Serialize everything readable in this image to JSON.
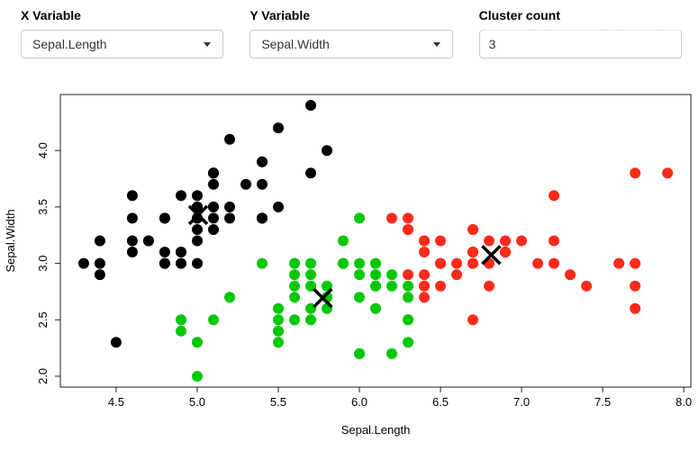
{
  "controls": {
    "x_variable": {
      "label": "X Variable",
      "value": "Sepal.Length"
    },
    "y_variable": {
      "label": "Y Variable",
      "value": "Sepal.Width"
    },
    "cluster_count": {
      "label": "Cluster count",
      "value": "3"
    }
  },
  "chart_data": {
    "type": "scatter",
    "title": "",
    "xlabel": "Sepal.Length",
    "ylabel": "Sepal.Width",
    "xlim": [
      4.156,
      8.044
    ],
    "ylim": [
      1.904,
      4.496
    ],
    "x_tick_labels": [
      "4.5",
      "5.0",
      "5.5",
      "6.0",
      "6.5",
      "7.0",
      "7.5",
      "8.0"
    ],
    "y_tick_labels": [
      "2.0",
      "2.5",
      "3.0",
      "3.5",
      "4.0"
    ],
    "grid": false,
    "legend_position": "none",
    "cluster_colors": {
      "1": "#000000",
      "2": "#00C800",
      "3": "#FF2A1A"
    },
    "points": [
      [
        5.1,
        3.5,
        1
      ],
      [
        4.9,
        3.0,
        1
      ],
      [
        4.7,
        3.2,
        1
      ],
      [
        4.6,
        3.1,
        1
      ],
      [
        5.0,
        3.6,
        1
      ],
      [
        5.4,
        3.9,
        1
      ],
      [
        4.6,
        3.4,
        1
      ],
      [
        5.0,
        3.4,
        1
      ],
      [
        4.4,
        2.9,
        1
      ],
      [
        4.9,
        3.1,
        1
      ],
      [
        5.4,
        3.7,
        1
      ],
      [
        4.8,
        3.4,
        1
      ],
      [
        4.8,
        3.0,
        1
      ],
      [
        4.3,
        3.0,
        1
      ],
      [
        5.8,
        4.0,
        1
      ],
      [
        5.7,
        4.4,
        1
      ],
      [
        5.4,
        3.9,
        1
      ],
      [
        5.1,
        3.5,
        1
      ],
      [
        5.7,
        3.8,
        1
      ],
      [
        5.1,
        3.8,
        1
      ],
      [
        5.4,
        3.4,
        1
      ],
      [
        5.1,
        3.7,
        1
      ],
      [
        4.6,
        3.6,
        1
      ],
      [
        5.1,
        3.3,
        1
      ],
      [
        4.8,
        3.4,
        1
      ],
      [
        5.0,
        3.0,
        1
      ],
      [
        5.0,
        3.4,
        1
      ],
      [
        5.2,
        3.5,
        1
      ],
      [
        5.2,
        3.4,
        1
      ],
      [
        4.7,
        3.2,
        1
      ],
      [
        4.8,
        3.1,
        1
      ],
      [
        5.4,
        3.4,
        1
      ],
      [
        5.2,
        4.1,
        1
      ],
      [
        5.5,
        4.2,
        1
      ],
      [
        4.9,
        3.1,
        1
      ],
      [
        5.0,
        3.2,
        1
      ],
      [
        5.5,
        3.5,
        1
      ],
      [
        4.9,
        3.6,
        1
      ],
      [
        4.4,
        3.0,
        1
      ],
      [
        5.1,
        3.4,
        1
      ],
      [
        5.0,
        3.5,
        1
      ],
      [
        4.5,
        2.3,
        1
      ],
      [
        4.4,
        3.2,
        1
      ],
      [
        5.0,
        3.5,
        1
      ],
      [
        5.1,
        3.8,
        1
      ],
      [
        4.8,
        3.0,
        1
      ],
      [
        5.1,
        3.8,
        1
      ],
      [
        4.6,
        3.2,
        1
      ],
      [
        5.3,
        3.7,
        1
      ],
      [
        5.0,
        3.3,
        1
      ],
      [
        7.0,
        3.2,
        3
      ],
      [
        6.4,
        3.2,
        3
      ],
      [
        6.9,
        3.1,
        3
      ],
      [
        5.5,
        2.3,
        2
      ],
      [
        6.5,
        2.8,
        3
      ],
      [
        5.7,
        2.8,
        2
      ],
      [
        6.3,
        3.3,
        3
      ],
      [
        4.9,
        2.4,
        2
      ],
      [
        6.6,
        2.9,
        3
      ],
      [
        5.2,
        2.7,
        2
      ],
      [
        5.0,
        2.0,
        2
      ],
      [
        5.9,
        3.0,
        2
      ],
      [
        6.0,
        2.2,
        2
      ],
      [
        6.1,
        2.9,
        2
      ],
      [
        5.6,
        2.9,
        2
      ],
      [
        6.7,
        3.1,
        3
      ],
      [
        5.6,
        3.0,
        2
      ],
      [
        5.8,
        2.7,
        2
      ],
      [
        6.2,
        2.2,
        2
      ],
      [
        5.6,
        2.5,
        2
      ],
      [
        5.9,
        3.2,
        2
      ],
      [
        6.1,
        2.8,
        2
      ],
      [
        6.3,
        2.5,
        2
      ],
      [
        6.1,
        2.8,
        2
      ],
      [
        6.4,
        2.9,
        3
      ],
      [
        6.6,
        3.0,
        3
      ],
      [
        6.8,
        2.8,
        3
      ],
      [
        6.7,
        3.0,
        3
      ],
      [
        6.0,
        2.9,
        2
      ],
      [
        5.7,
        2.6,
        2
      ],
      [
        5.5,
        2.4,
        2
      ],
      [
        5.5,
        2.4,
        2
      ],
      [
        5.8,
        2.7,
        2
      ],
      [
        6.0,
        2.7,
        2
      ],
      [
        5.4,
        3.0,
        2
      ],
      [
        6.0,
        3.4,
        2
      ],
      [
        6.7,
        3.1,
        3
      ],
      [
        6.3,
        2.3,
        2
      ],
      [
        5.6,
        3.0,
        2
      ],
      [
        5.5,
        2.5,
        2
      ],
      [
        5.5,
        2.6,
        2
      ],
      [
        6.1,
        3.0,
        2
      ],
      [
        5.8,
        2.6,
        2
      ],
      [
        5.0,
        2.3,
        2
      ],
      [
        5.6,
        2.7,
        2
      ],
      [
        5.7,
        3.0,
        2
      ],
      [
        5.7,
        2.9,
        2
      ],
      [
        6.2,
        2.9,
        2
      ],
      [
        5.1,
        2.5,
        2
      ],
      [
        5.7,
        2.8,
        2
      ],
      [
        6.3,
        3.3,
        3
      ],
      [
        5.8,
        2.7,
        2
      ],
      [
        7.1,
        3.0,
        3
      ],
      [
        6.3,
        2.9,
        3
      ],
      [
        6.5,
        3.0,
        3
      ],
      [
        7.6,
        3.0,
        3
      ],
      [
        4.9,
        2.5,
        2
      ],
      [
        7.3,
        2.9,
        3
      ],
      [
        6.7,
        2.5,
        3
      ],
      [
        7.2,
        3.6,
        3
      ],
      [
        6.5,
        3.2,
        3
      ],
      [
        6.4,
        2.7,
        3
      ],
      [
        6.8,
        3.0,
        3
      ],
      [
        5.7,
        2.5,
        2
      ],
      [
        5.8,
        2.8,
        2
      ],
      [
        6.4,
        3.2,
        3
      ],
      [
        6.5,
        3.0,
        3
      ],
      [
        7.7,
        3.8,
        3
      ],
      [
        7.7,
        2.6,
        3
      ],
      [
        6.0,
        2.2,
        2
      ],
      [
        6.9,
        3.2,
        3
      ],
      [
        5.6,
        2.8,
        2
      ],
      [
        7.7,
        2.8,
        3
      ],
      [
        6.3,
        2.7,
        2
      ],
      [
        6.7,
        3.3,
        3
      ],
      [
        7.2,
        3.2,
        3
      ],
      [
        6.2,
        2.8,
        2
      ],
      [
        6.1,
        3.0,
        2
      ],
      [
        6.4,
        2.8,
        3
      ],
      [
        7.2,
        3.0,
        3
      ],
      [
        7.4,
        2.8,
        3
      ],
      [
        7.9,
        3.8,
        3
      ],
      [
        6.4,
        2.8,
        3
      ],
      [
        6.3,
        2.8,
        2
      ],
      [
        6.1,
        2.6,
        2
      ],
      [
        7.7,
        3.0,
        3
      ],
      [
        6.3,
        3.4,
        3
      ],
      [
        6.4,
        3.1,
        3
      ],
      [
        6.0,
        3.0,
        2
      ],
      [
        6.9,
        3.1,
        3
      ],
      [
        6.7,
        3.1,
        3
      ],
      [
        6.9,
        3.1,
        3
      ],
      [
        5.8,
        2.7,
        2
      ],
      [
        6.8,
        3.2,
        3
      ],
      [
        6.7,
        3.3,
        3
      ],
      [
        6.7,
        3.0,
        3
      ],
      [
        6.3,
        2.5,
        2
      ],
      [
        6.5,
        3.0,
        3
      ],
      [
        6.2,
        3.4,
        3
      ],
      [
        5.9,
        3.0,
        2
      ]
    ],
    "centers": [
      [
        5.006,
        3.428
      ],
      [
        5.774,
        2.693
      ],
      [
        6.813,
        3.074
      ]
    ]
  }
}
